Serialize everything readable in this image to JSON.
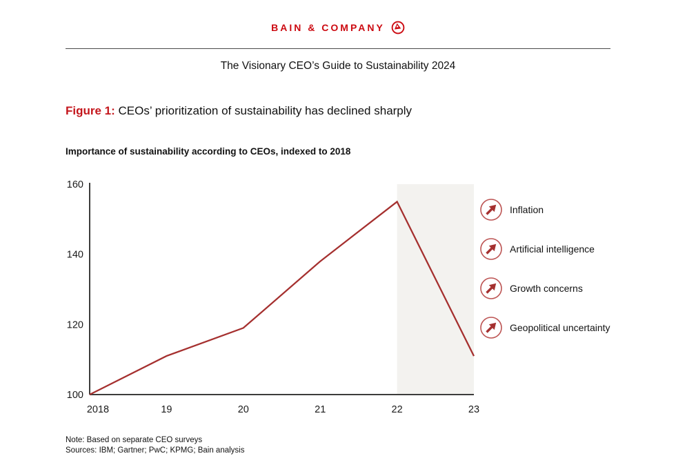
{
  "brand": {
    "name": "BAIN & COMPANY",
    "logo_icon": "bain-compass-icon",
    "color": "#cc0a11"
  },
  "report_title": "The Visionary CEO’s Guide to Sustainability 2024",
  "figure": {
    "label": "Figure 1:",
    "title": " CEOs’ prioritization of sustainability has declined sharply"
  },
  "chart_data": {
    "type": "line",
    "title": "Importance of sustainability according to CEOs, indexed to 2018",
    "x": [
      2018,
      2019,
      2020,
      2021,
      2022,
      2023
    ],
    "x_tick_labels": [
      "2018",
      "19",
      "20",
      "21",
      "22",
      "23"
    ],
    "series": [
      {
        "name": "Importance of sustainability according to CEOs (indexed to 2018)",
        "values": [
          100,
          111,
          119,
          138,
          155,
          111
        ],
        "color": "#a5302f"
      }
    ],
    "ylim": [
      100,
      160
    ],
    "y_ticks": [
      100,
      120,
      140,
      160
    ],
    "highlight_band": {
      "from": 2022,
      "to": 2023,
      "color": "#f3f2ef"
    },
    "grid": false,
    "axis_color": "#3c3c3b",
    "tick_label_color": "#1a1a1a",
    "legend_position": "right"
  },
  "legend": {
    "icon": "trend-up-arrow-icon",
    "icon_color": "#a5302f",
    "items": [
      {
        "label": "Inflation"
      },
      {
        "label": "Artificial intelligence"
      },
      {
        "label": "Growth concerns"
      },
      {
        "label": "Geopolitical uncertainty"
      }
    ]
  },
  "footnotes": [
    "Note: Based on separate CEO surveys",
    "Sources: IBM; Gartner; PwC; KPMG; Bain analysis"
  ]
}
